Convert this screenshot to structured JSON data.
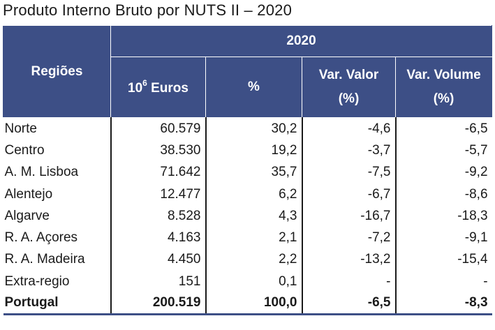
{
  "title": "Produto Interno Bruto por NUTS II – 2020",
  "header": {
    "regions": "Regiões",
    "year": "2020",
    "unit_base": "10",
    "unit_exp": "6",
    "unit_word": "Euros",
    "pct": "%",
    "var_valor": "Var. Valor",
    "var_volume": "Var. Volume",
    "pct_paren": "(%)"
  },
  "rows": [
    {
      "region": "Norte",
      "euros": "60.579",
      "pct": "30,2",
      "var_valor": "-4,6",
      "var_volume": "-6,5"
    },
    {
      "region": "Centro",
      "euros": "38.530",
      "pct": "19,2",
      "var_valor": "-3,7",
      "var_volume": "-5,7"
    },
    {
      "region": "A. M. Lisboa",
      "euros": "71.642",
      "pct": "35,7",
      "var_valor": "-7,5",
      "var_volume": "-9,2"
    },
    {
      "region": "Alentejo",
      "euros": "12.477",
      "pct": "6,2",
      "var_valor": "-6,7",
      "var_volume": "-8,6"
    },
    {
      "region": "Algarve",
      "euros": "8.528",
      "pct": "4,3",
      "var_valor": "-16,7",
      "var_volume": "-18,3"
    },
    {
      "region": "R. A. Açores",
      "euros": "4.163",
      "pct": "2,1",
      "var_valor": "-7,2",
      "var_volume": "-9,1"
    },
    {
      "region": "R. A. Madeira",
      "euros": "4.450",
      "pct": "2,2",
      "var_valor": "-13,2",
      "var_volume": "-15,4"
    },
    {
      "region": "Extra-regio",
      "euros": "151",
      "pct": "0,1",
      "var_valor": "-",
      "var_volume": "-"
    }
  ],
  "total": {
    "region": "Portugal",
    "euros": "200.519",
    "pct": "100,0",
    "var_valor": "-6,5",
    "var_volume": "-8,3"
  },
  "colors": {
    "header_bg": "#3d4f86",
    "header_text": "#ffffff"
  }
}
